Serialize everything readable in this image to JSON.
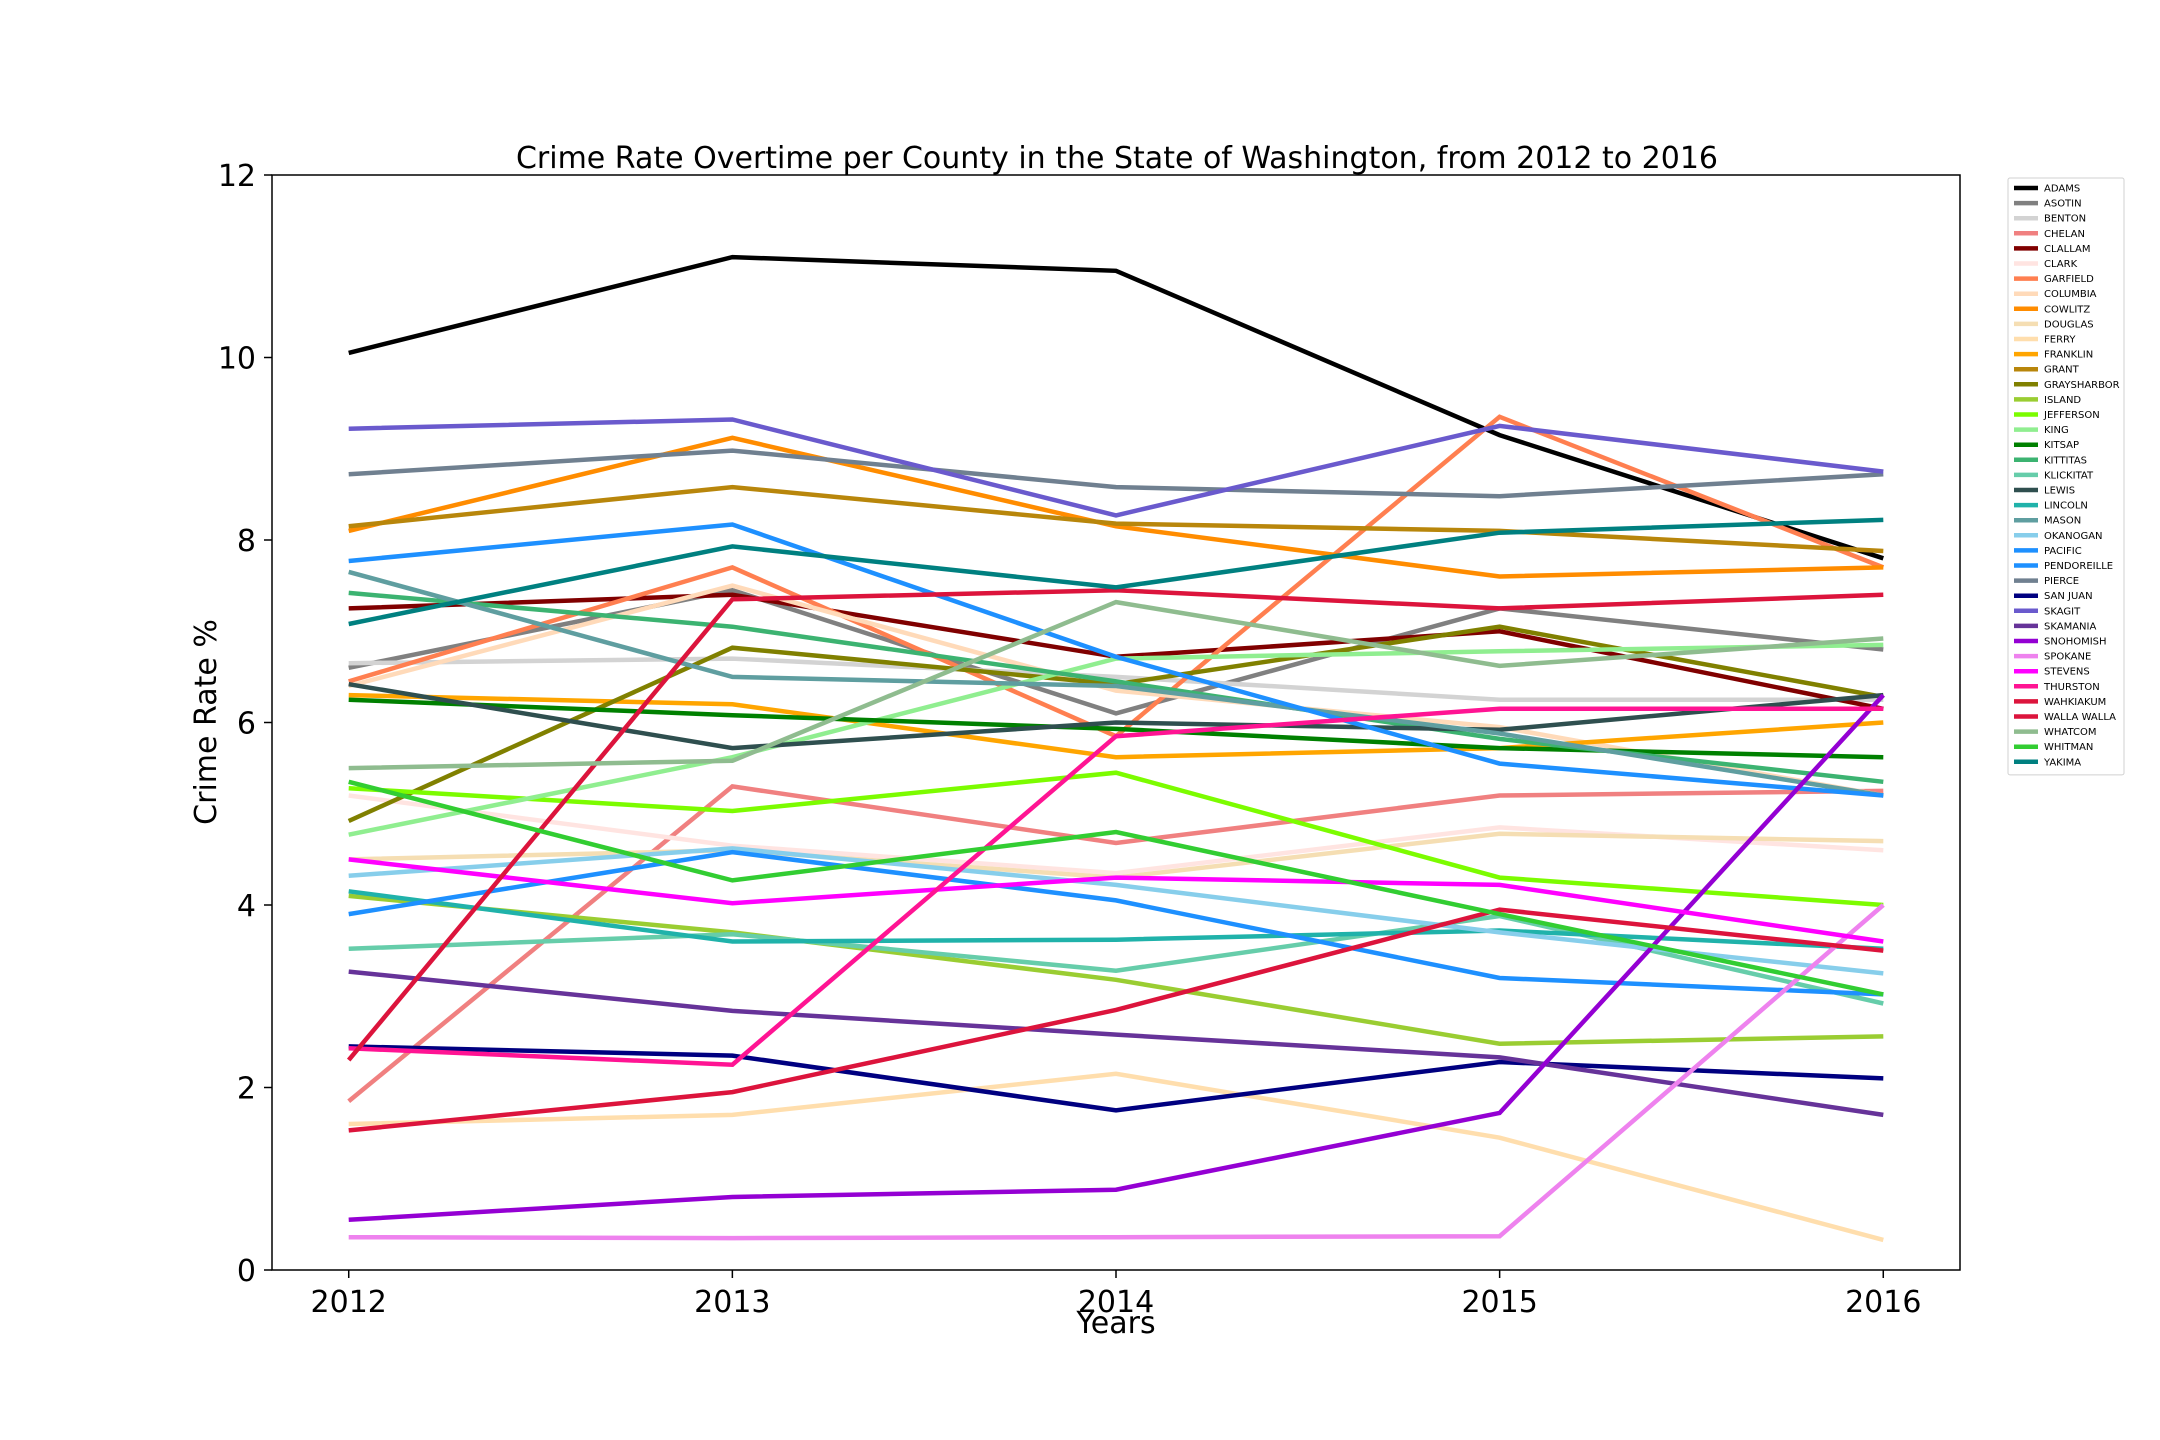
{
  "chart_data": {
    "type": "line",
    "title": "Crime Rate Overtime per County in the State of Washington, from 2012 to 2016",
    "xlabel": "Years",
    "ylabel": "Crime Rate %",
    "x": [
      2012,
      2013,
      2014,
      2015,
      2016
    ],
    "x_tick_labels": [
      "2012",
      "2013",
      "2014",
      "2015",
      "2016"
    ],
    "y_ticks": [
      0,
      2,
      4,
      6,
      8,
      10,
      12
    ],
    "y_tick_labels": [
      "0",
      "2",
      "4",
      "6",
      "8",
      "10",
      "12"
    ],
    "xlim": [
      2011.8,
      2016.2
    ],
    "ylim": [
      0,
      12
    ],
    "grid": false,
    "legend_position": "outside-right-top",
    "series": [
      {
        "name": "ADAMS",
        "color": "#000000",
        "values": [
          10.05,
          11.1,
          10.95,
          9.15,
          7.8
        ]
      },
      {
        "name": "ASOTIN",
        "color": "#808080",
        "values": [
          6.6,
          7.45,
          6.1,
          7.25,
          6.8
        ]
      },
      {
        "name": "BENTON",
        "color": "#d3d3d3",
        "values": [
          6.65,
          6.7,
          6.5,
          6.25,
          6.25
        ]
      },
      {
        "name": "CHELAN",
        "color": "#f08080",
        "values": [
          1.85,
          5.3,
          4.68,
          5.2,
          5.25
        ]
      },
      {
        "name": "CLALLAM",
        "color": "#800000",
        "values": [
          7.25,
          7.4,
          6.72,
          7.0,
          6.15
        ]
      },
      {
        "name": "CLARK",
        "color": "#ffe4e1",
        "values": [
          5.2,
          4.65,
          4.35,
          4.85,
          4.6
        ]
      },
      {
        "name": "GARFIELD",
        "color": "#ff7f50",
        "values": [
          6.45,
          7.7,
          5.85,
          9.35,
          7.7
        ]
      },
      {
        "name": "COLUMBIA",
        "color": "#ffdab9",
        "values": [
          6.4,
          7.5,
          6.35,
          5.95,
          5.2
        ]
      },
      {
        "name": "COWLITZ",
        "color": "#ff8c00",
        "values": [
          8.1,
          9.12,
          8.15,
          7.6,
          7.7
        ]
      },
      {
        "name": "DOUGLAS",
        "color": "#f5deb3",
        "values": [
          4.5,
          4.6,
          4.3,
          4.78,
          4.7
        ]
      },
      {
        "name": "FERRY",
        "color": "#ffdead",
        "values": [
          1.6,
          1.7,
          2.15,
          1.45,
          0.33
        ]
      },
      {
        "name": "FRANKLIN",
        "color": "#ffa500",
        "values": [
          6.3,
          6.2,
          5.62,
          5.72,
          6.0
        ]
      },
      {
        "name": "GRANT",
        "color": "#b8860b",
        "values": [
          8.15,
          8.58,
          8.18,
          8.1,
          7.88
        ]
      },
      {
        "name": "GRAYSHARBOR",
        "color": "#808000",
        "values": [
          4.92,
          6.82,
          6.42,
          7.05,
          6.28
        ]
      },
      {
        "name": "ISLAND",
        "color": "#9acd32",
        "values": [
          4.1,
          3.7,
          3.18,
          2.48,
          2.56
        ]
      },
      {
        "name": "JEFFERSON",
        "color": "#7cfc00",
        "values": [
          5.28,
          5.03,
          5.45,
          4.3,
          4.0
        ]
      },
      {
        "name": "KING",
        "color": "#90ee90",
        "values": [
          4.77,
          5.62,
          6.7,
          6.78,
          6.85
        ]
      },
      {
        "name": "KITSAP",
        "color": "#008000",
        "values": [
          6.25,
          6.08,
          5.93,
          5.72,
          5.62
        ]
      },
      {
        "name": "KITTITAS",
        "color": "#3cb371",
        "values": [
          7.42,
          7.05,
          6.45,
          5.82,
          5.35
        ]
      },
      {
        "name": "KLICKITAT",
        "color": "#66cdaa",
        "values": [
          3.52,
          3.68,
          3.28,
          3.88,
          2.92
        ]
      },
      {
        "name": "LEWIS",
        "color": "#2f4f4f",
        "values": [
          6.42,
          5.72,
          6.0,
          5.92,
          6.3
        ]
      },
      {
        "name": "LINCOLN",
        "color": "#20b2aa",
        "values": [
          4.15,
          3.6,
          3.62,
          3.72,
          3.52
        ]
      },
      {
        "name": "MASON",
        "color": "#5f9ea0",
        "values": [
          7.65,
          6.5,
          6.4,
          5.88,
          5.2
        ]
      },
      {
        "name": "OKANOGAN",
        "color": "#87ceeb",
        "values": [
          4.32,
          4.62,
          4.22,
          3.7,
          3.25
        ]
      },
      {
        "name": "PACIFIC",
        "color": "#1e90ff",
        "values": [
          3.9,
          4.58,
          4.05,
          3.2,
          3.02
        ]
      },
      {
        "name": "PENDOREILLE",
        "color": "#1e90ff",
        "values": [
          7.77,
          8.17,
          6.72,
          5.55,
          5.2
        ]
      },
      {
        "name": "PIERCE",
        "color": "#708090",
        "values": [
          8.72,
          8.98,
          8.58,
          8.48,
          8.72
        ]
      },
      {
        "name": "SAN JUAN",
        "color": "#000080",
        "values": [
          2.45,
          2.35,
          1.75,
          2.28,
          2.1
        ]
      },
      {
        "name": "SKAGIT",
        "color": "#6a5acd",
        "values": [
          9.22,
          9.32,
          8.27,
          9.25,
          8.75
        ]
      },
      {
        "name": "SKAMANIA",
        "color": "#663399",
        "values": [
          3.27,
          2.84,
          2.58,
          2.33,
          1.7
        ]
      },
      {
        "name": "SNOHOMISH",
        "color": "#9400d3",
        "values": [
          0.55,
          0.8,
          0.88,
          1.72,
          6.3
        ]
      },
      {
        "name": "SPOKANE",
        "color": "#ee82ee",
        "values": [
          0.36,
          0.35,
          0.36,
          0.37,
          4.0
        ]
      },
      {
        "name": "STEVENS",
        "color": "#ff00ff",
        "values": [
          4.5,
          4.02,
          4.3,
          4.22,
          3.6
        ]
      },
      {
        "name": "THURSTON",
        "color": "#ff1493",
        "values": [
          2.43,
          2.25,
          5.85,
          6.15,
          6.15
        ]
      },
      {
        "name": "WAHKIAKUM",
        "color": "#dc143c",
        "values": [
          2.3,
          7.35,
          7.45,
          7.25,
          7.4
        ]
      },
      {
        "name": "WALLA WALLA",
        "color": "#dc143c",
        "values": [
          1.53,
          1.95,
          2.85,
          3.95,
          3.5
        ]
      },
      {
        "name": "WHATCOM",
        "color": "#8fbc8f",
        "values": [
          5.5,
          5.58,
          7.32,
          6.62,
          6.92
        ]
      },
      {
        "name": "WHITMAN",
        "color": "#32cd32",
        "values": [
          5.35,
          4.27,
          4.8,
          3.9,
          3.02
        ]
      },
      {
        "name": "YAKIMA",
        "color": "#008080",
        "values": [
          7.08,
          7.93,
          7.48,
          8.08,
          8.22
        ]
      }
    ]
  }
}
